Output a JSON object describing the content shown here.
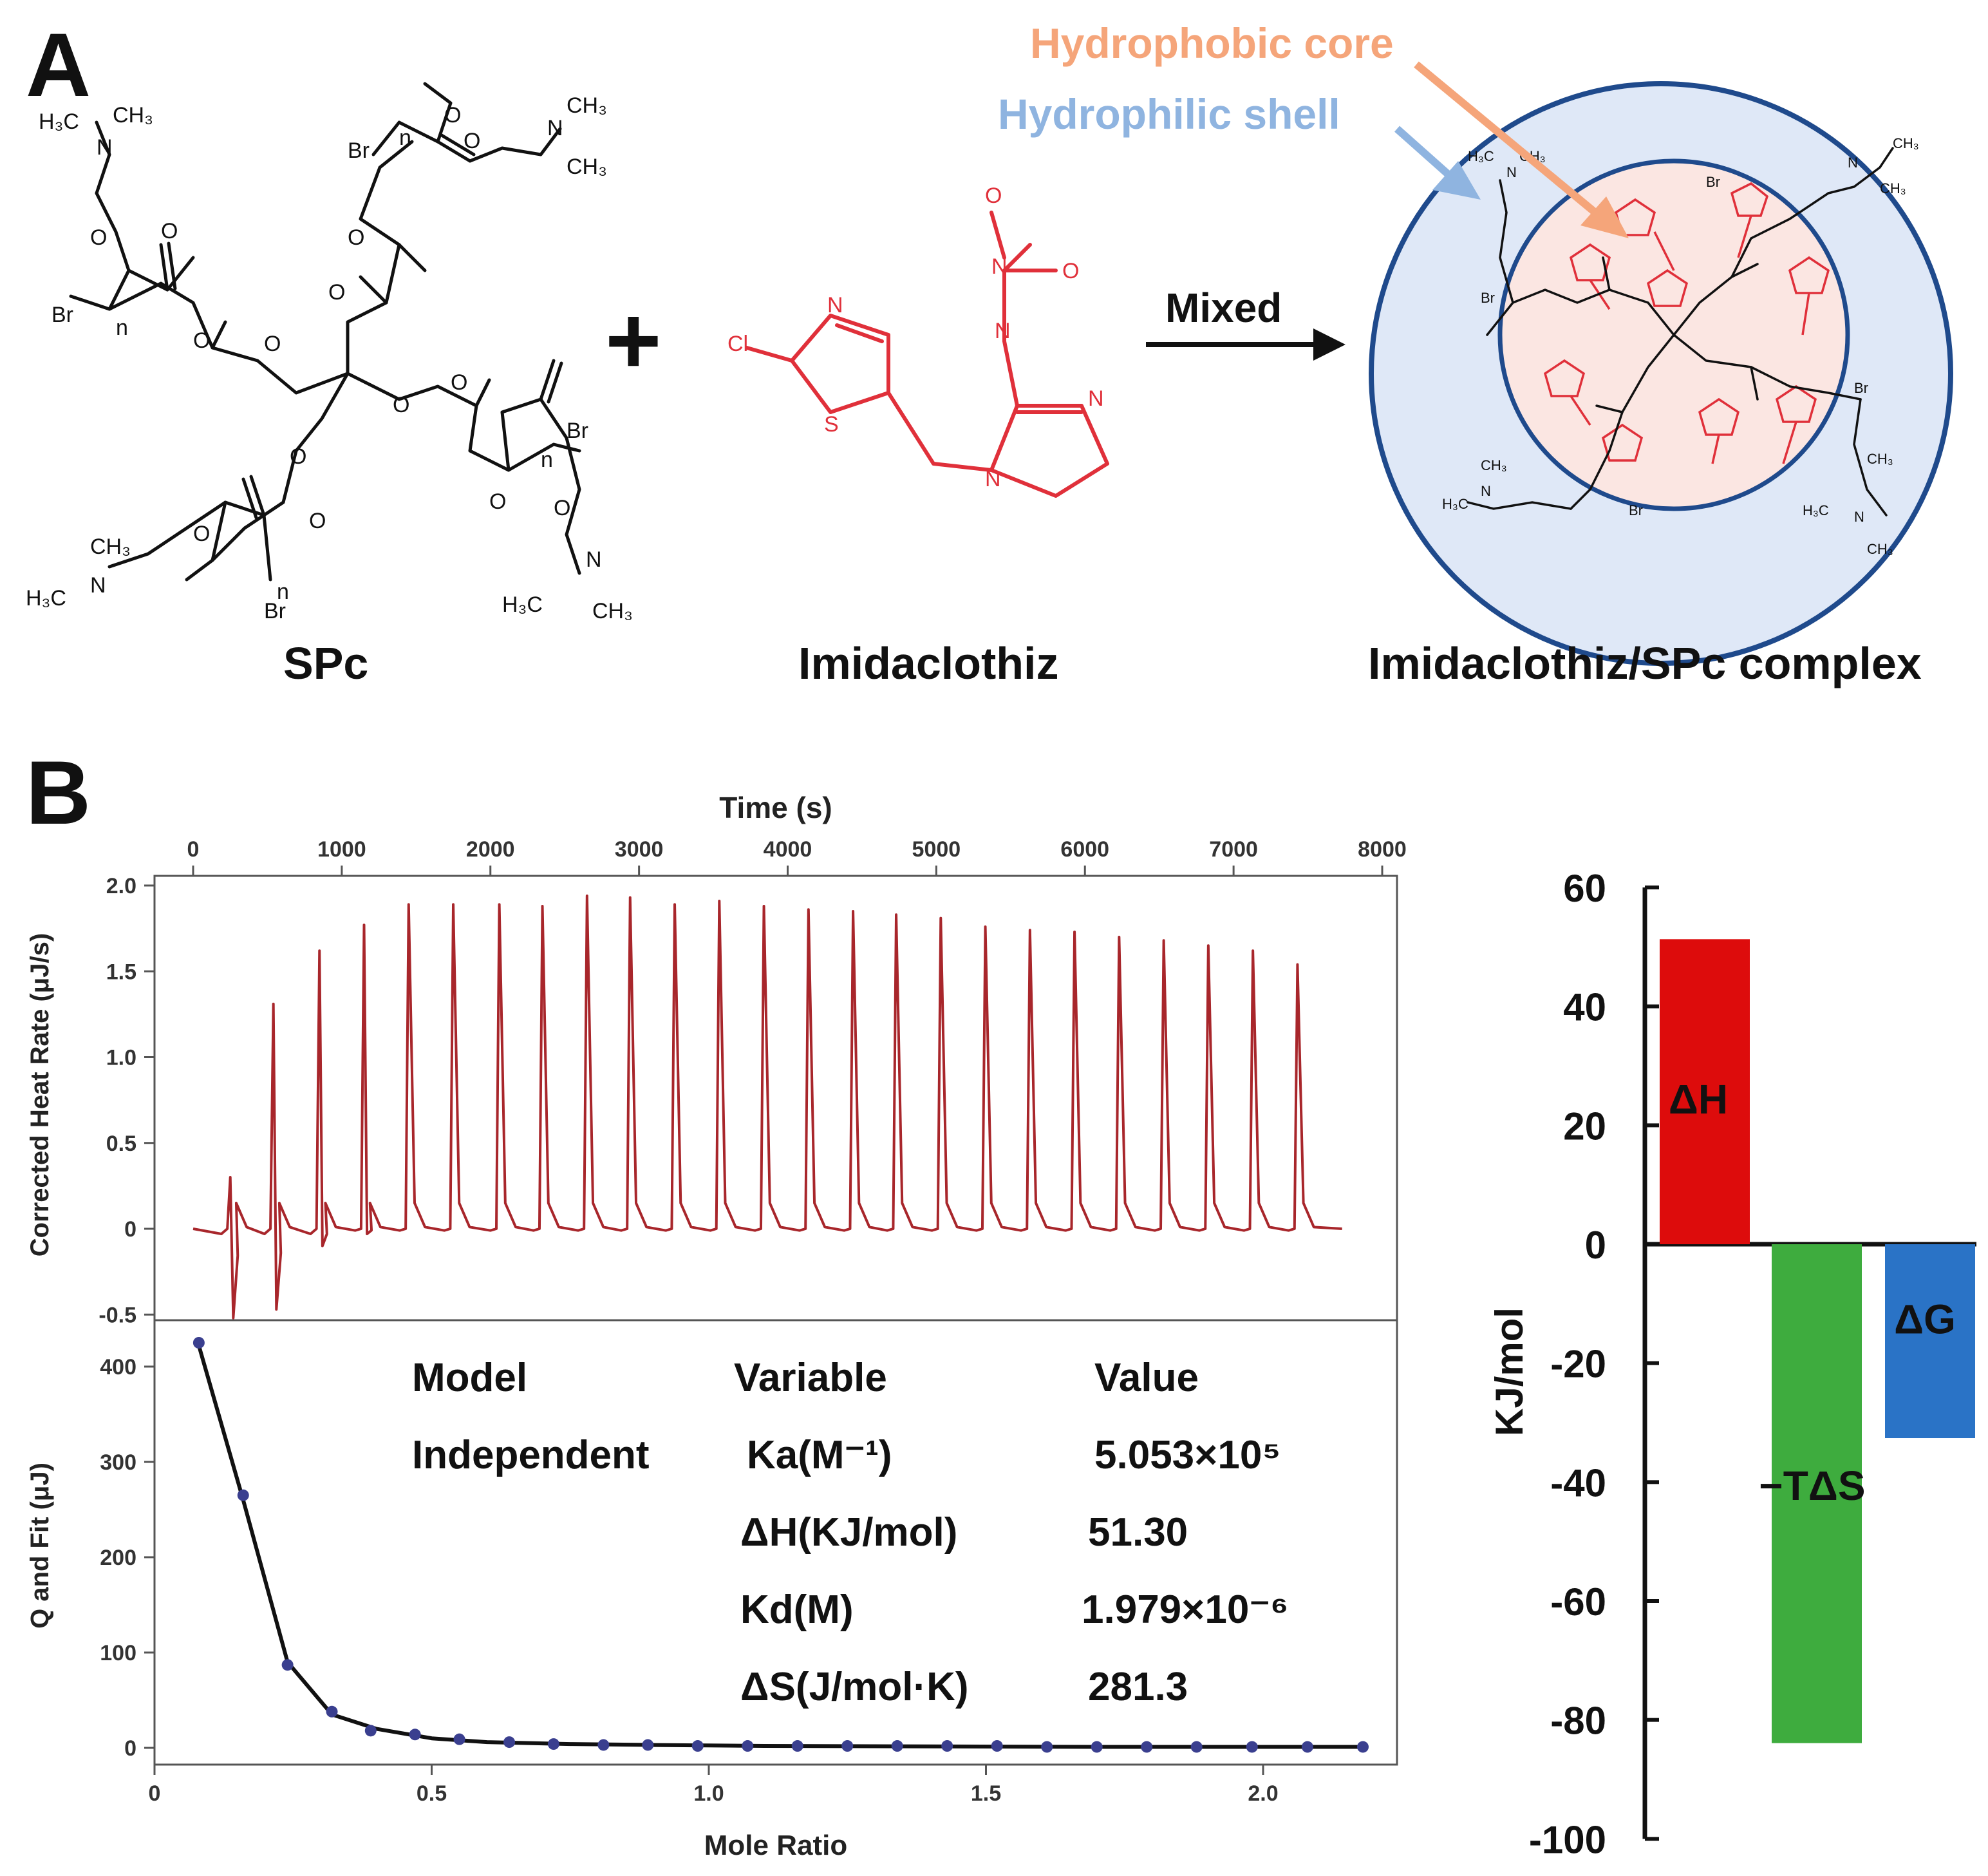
{
  "panels": {
    "a": "A",
    "b": "B"
  },
  "scheme": {
    "spc_label": "SPc",
    "imid_label": "Imidaclothiz",
    "complex_label": "Imidaclothiz/SPc complex",
    "plus": "+",
    "arrow_label": "Mixed",
    "core_label": "Hydrophobic core",
    "shell_label": "Hydrophilic shell",
    "colors": {
      "core": "#f5a57a",
      "shell": "#8fb4e0",
      "drug": "#e0303a",
      "ring": "#1f4a8c",
      "shell_fill": "#dfe8f7",
      "core_fill": "#fbe6e2"
    }
  },
  "chart_data": [
    {
      "type": "line",
      "id": "itc-raw",
      "xlabel": "Time (s)",
      "ylabel": "Corrected Heat Rate (μJ/s)",
      "xlim": [
        0,
        8000
      ],
      "ylim": [
        -0.6,
        2.05
      ],
      "xticks": [
        0,
        1000,
        2000,
        3000,
        4000,
        5000,
        6000,
        7000,
        8000
      ],
      "yticks": [
        2.0,
        1.5,
        1.0,
        0.5,
        0,
        -0.5
      ],
      "ytick_labels": [
        "2.0",
        "1.5",
        "1.0",
        "0.5",
        "0",
        "-0.5"
      ],
      "color": "#a8262b",
      "peaks": {
        "time": [
          250,
          540,
          850,
          1150,
          1450,
          1750,
          2060,
          2350,
          2650,
          2940,
          3240,
          3540,
          3840,
          4140,
          4440,
          4730,
          5030,
          5330,
          5630,
          5930,
          6230,
          6530,
          6830,
          7130,
          7430
        ],
        "height": [
          0.3,
          1.31,
          1.62,
          1.77,
          1.89,
          1.89,
          1.89,
          1.88,
          1.94,
          1.93,
          1.89,
          1.91,
          1.88,
          1.86,
          1.85,
          1.83,
          1.81,
          1.76,
          1.74,
          1.73,
          1.7,
          1.68,
          1.65,
          1.62,
          1.54
        ],
        "dip": [
          -0.52,
          -0.47,
          -0.1,
          -0.03,
          0,
          0,
          0,
          0,
          0,
          0,
          0,
          0,
          0,
          0,
          0,
          0,
          0,
          0,
          0,
          0,
          0,
          0,
          0,
          0,
          0
        ]
      }
    },
    {
      "type": "scatter",
      "id": "itc-fit",
      "xlabel": "Mole Ratio",
      "ylabel": "Q and Fit (μJ)",
      "xlim": [
        0,
        2.28
      ],
      "ylim": [
        -20,
        445
      ],
      "xticks": [
        0,
        0.5,
        1.0,
        1.5,
        2.0
      ],
      "xtick_labels": [
        "0",
        "0.5",
        "1.0",
        "1.5",
        "2.0"
      ],
      "yticks": [
        0,
        100,
        200,
        300,
        400
      ],
      "ytick_labels": [
        "0",
        "100",
        "200",
        "300",
        "400"
      ],
      "point_color": "#3a3f8f",
      "line_color": "#111111",
      "x": [
        0.08,
        0.16,
        0.24,
        0.32,
        0.39,
        0.47,
        0.55,
        0.64,
        0.72,
        0.81,
        0.89,
        0.98,
        1.07,
        1.16,
        1.25,
        1.34,
        1.43,
        1.52,
        1.61,
        1.7,
        1.79,
        1.88,
        1.98,
        2.08,
        2.18
      ],
      "y": [
        425,
        265,
        87,
        38,
        18,
        14,
        9,
        6,
        4,
        3,
        3,
        2,
        2,
        2,
        2,
        2,
        2,
        2,
        1,
        1,
        1,
        1,
        1,
        1,
        1
      ],
      "fit_x": [
        0.08,
        0.16,
        0.24,
        0.32,
        0.4,
        0.5,
        0.6,
        0.75,
        0.9,
        1.1,
        1.4,
        1.7,
        2.0,
        2.18
      ],
      "fit_y": [
        422,
        260,
        90,
        35,
        20,
        10,
        6,
        4,
        3,
        2,
        1.5,
        1,
        1,
        1
      ],
      "table": {
        "headers": [
          "Model",
          "Variable",
          "Value"
        ],
        "model": "Independent",
        "rows": [
          {
            "variable": "Ka(M⁻¹)",
            "value": "5.053×10⁵"
          },
          {
            "variable": "ΔH(KJ/mol)",
            "value": "51.30"
          },
          {
            "variable": "Kd(M)",
            "value": "1.979×10⁻⁶"
          },
          {
            "variable": "ΔS(J/mol·K)",
            "value": "281.3"
          }
        ]
      }
    },
    {
      "type": "bar",
      "id": "thermo",
      "ylabel": "KJ/mol",
      "ylim": [
        -100,
        60
      ],
      "yticks": [
        60,
        40,
        20,
        0,
        -20,
        -40,
        -60,
        -80,
        -100
      ],
      "ytick_labels": [
        "60",
        "40",
        "20",
        "0",
        "-20",
        "-40",
        "-60",
        "-80",
        "-100"
      ],
      "categories": [
        "ΔH",
        "−TΔS",
        "ΔG"
      ],
      "values": [
        51.3,
        -83.9,
        -32.6
      ],
      "colors": [
        "#dd0c0c",
        "#3eac3e",
        "#2a73c6"
      ]
    }
  ]
}
